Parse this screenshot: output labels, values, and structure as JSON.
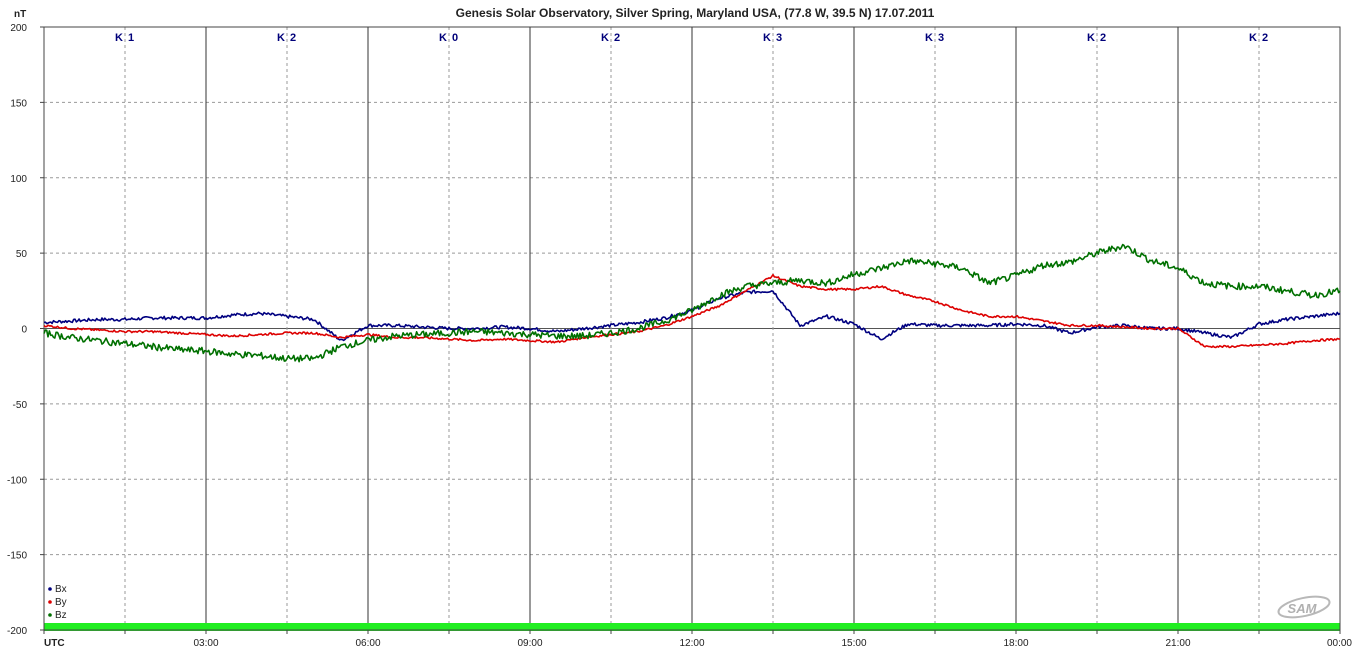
{
  "chart_data": {
    "type": "line",
    "title": "Genesis Solar Observatory, Silver Spring, Maryland USA, (77.8 W, 39.5 N)  17.07.2011",
    "ylabel": "nT",
    "xlabel": "UTC",
    "ylim": [
      -200,
      200
    ],
    "yticks": [
      "200",
      "150",
      "100",
      "50",
      "0",
      "-50",
      "-100",
      "-150",
      "-200"
    ],
    "ytick_values": [
      200,
      150,
      100,
      50,
      0,
      -50,
      -100,
      -150,
      -200
    ],
    "xlim_hours": [
      0,
      24
    ],
    "xticks": [
      "UTC",
      "03:00",
      "06:00",
      "09:00",
      "12:00",
      "15:00",
      "18:00",
      "21:00",
      "00:00"
    ],
    "grid": true,
    "legend_position": "bottom-left",
    "k_index": [
      "K 1",
      "K 2",
      "K 0",
      "K 2",
      "K 3",
      "K 3",
      "K 2",
      "K 2"
    ],
    "colors": {
      "Bx": "#000080",
      "By": "#dd0000",
      "Bz": "#007000",
      "status_bar": "#22ee22",
      "grid": "#999999",
      "axis": "#444444"
    },
    "x_hours": [
      0,
      0.5,
      1,
      1.5,
      2,
      2.5,
      3,
      3.5,
      4,
      4.5,
      5,
      5.5,
      6,
      6.5,
      7,
      7.5,
      8,
      8.5,
      9,
      9.5,
      10,
      10.5,
      11,
      11.5,
      12,
      12.5,
      13,
      13.5,
      14,
      14.5,
      15,
      15.5,
      16,
      16.5,
      17,
      17.5,
      18,
      18.5,
      19,
      19.5,
      20,
      20.5,
      21,
      21.5,
      22,
      22.5,
      23,
      23.5,
      24
    ],
    "series": [
      {
        "name": "Bx",
        "values": [
          4,
          5,
          6,
          6,
          7,
          7,
          7,
          9,
          10,
          8,
          6,
          -8,
          2,
          2,
          1,
          0,
          0,
          1,
          0,
          -2,
          0,
          2,
          4,
          7,
          12,
          20,
          24,
          25,
          2,
          8,
          3,
          -7,
          3,
          2,
          2,
          2,
          3,
          2,
          -3,
          1,
          2,
          0,
          0,
          -3,
          -6,
          3,
          6,
          8,
          10
        ]
      },
      {
        "name": "By",
        "values": [
          2,
          0,
          -1,
          -2,
          -2,
          -3,
          -4,
          -5,
          -4,
          -3,
          -3,
          -6,
          -4,
          -6,
          -6,
          -7,
          -8,
          -7,
          -8,
          -9,
          -6,
          -4,
          -2,
          2,
          8,
          15,
          25,
          35,
          28,
          26,
          26,
          28,
          22,
          18,
          12,
          8,
          8,
          5,
          2,
          2,
          1,
          0,
          0,
          -12,
          -12,
          -11,
          -10,
          -8,
          -7
        ]
      },
      {
        "name": "Bz",
        "values": [
          -3,
          -6,
          -8,
          -10,
          -12,
          -14,
          -15,
          -17,
          -18,
          -20,
          -20,
          -12,
          -8,
          -5,
          -4,
          -3,
          -2,
          -3,
          -4,
          -5,
          -5,
          -3,
          0,
          5,
          12,
          22,
          28,
          30,
          32,
          30,
          36,
          40,
          45,
          43,
          40,
          30,
          35,
          42,
          44,
          50,
          55,
          45,
          40,
          30,
          28,
          28,
          25,
          22,
          25
        ]
      }
    ]
  }
}
